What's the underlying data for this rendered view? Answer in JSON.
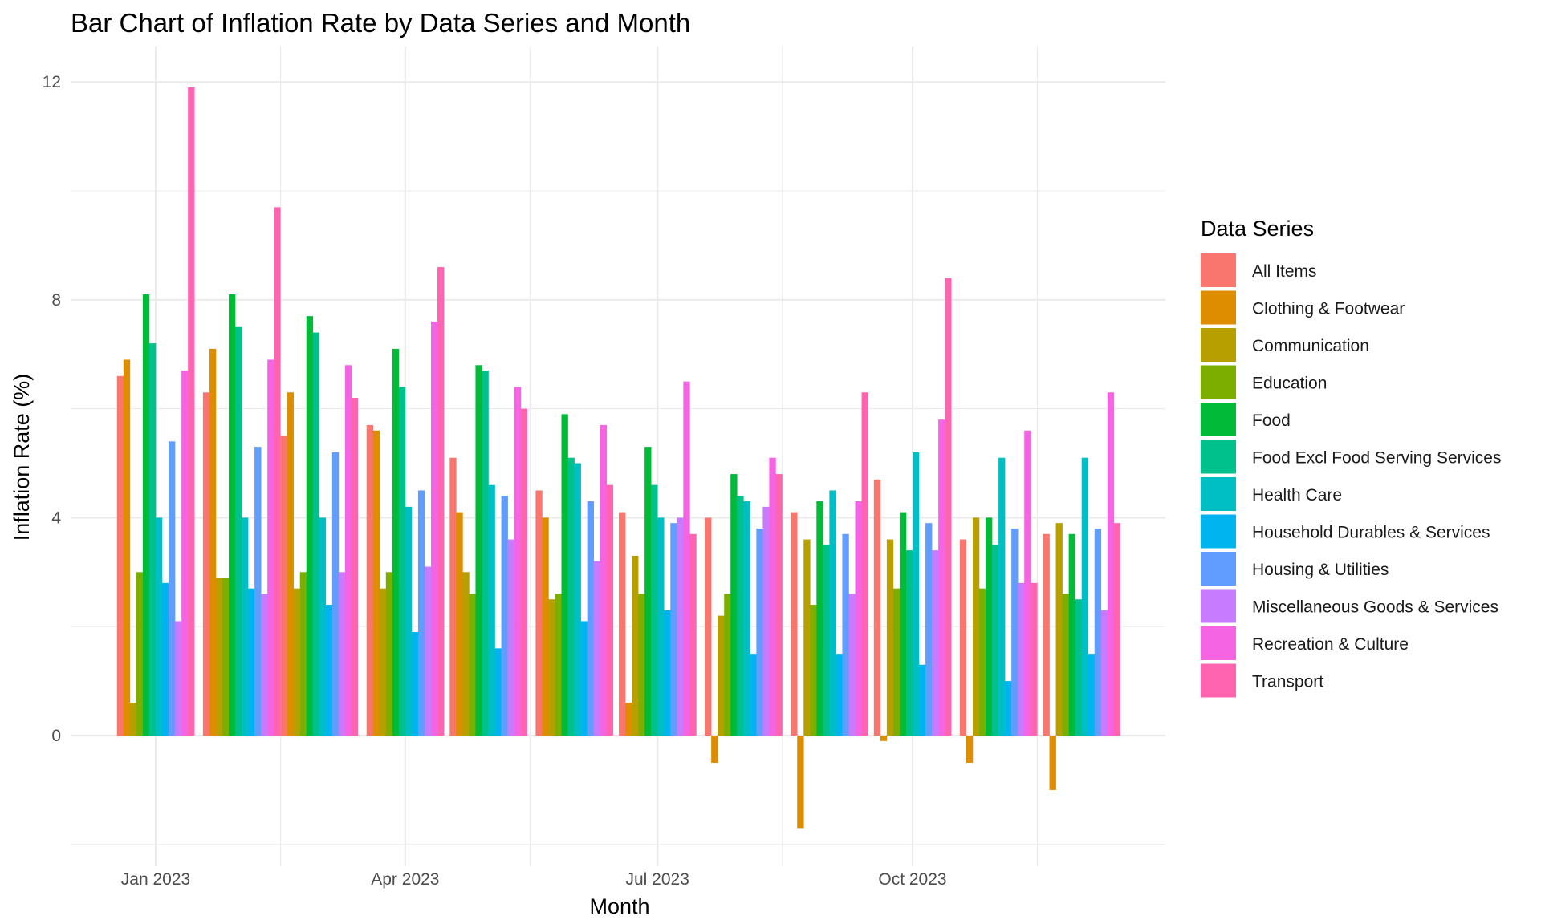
{
  "chart_data": {
    "type": "bar",
    "title": "Bar Chart of Inflation Rate by Data Series and Month",
    "xlabel": "Month",
    "ylabel": "Inflation Rate (%)",
    "ylim": [
      -2.4,
      12.6
    ],
    "y_ticks": [
      0,
      4,
      8,
      12
    ],
    "grid": true,
    "legend": {
      "title": "Data Series",
      "position": "right"
    },
    "categories": [
      "2023-01",
      "2023-02",
      "2023-03",
      "2023-04",
      "2023-05",
      "2023-06",
      "2023-07",
      "2023-08",
      "2023-09",
      "2023-10",
      "2023-11",
      "2023-12"
    ],
    "x_tick_labels": [
      {
        "month": "2023-01",
        "label": "Jan 2023"
      },
      {
        "month": "2023-04",
        "label": "Apr 2023"
      },
      {
        "month": "2023-07",
        "label": "Jul 2023"
      },
      {
        "month": "2023-10",
        "label": "Oct 2023"
      }
    ],
    "series": [
      {
        "name": "All Items",
        "color": "#F8766D",
        "values": [
          6.6,
          6.3,
          5.5,
          5.7,
          5.1,
          4.5,
          4.1,
          4.0,
          4.1,
          4.7,
          3.6,
          3.7
        ]
      },
      {
        "name": "Clothing & Footwear",
        "color": "#DE8C00",
        "values": [
          6.9,
          7.1,
          6.3,
          5.6,
          4.1,
          4.0,
          0.6,
          -0.5,
          -1.7,
          -0.1,
          -0.5,
          -1.0
        ]
      },
      {
        "name": "Communication",
        "color": "#B79F00",
        "values": [
          0.6,
          2.9,
          2.7,
          2.7,
          3.0,
          2.5,
          3.3,
          2.2,
          3.6,
          3.6,
          4.0,
          3.9
        ]
      },
      {
        "name": "Education",
        "color": "#7CAE00",
        "values": [
          3.0,
          2.9,
          3.0,
          3.0,
          2.6,
          2.6,
          2.6,
          2.6,
          2.4,
          2.7,
          2.7,
          2.6
        ]
      },
      {
        "name": "Food",
        "color": "#00BA38",
        "values": [
          8.1,
          8.1,
          7.7,
          7.1,
          6.8,
          5.9,
          5.3,
          4.8,
          4.3,
          4.1,
          4.0,
          3.7
        ]
      },
      {
        "name": "Food Excl Food Serving Services",
        "color": "#00C08B",
        "values": [
          7.2,
          7.5,
          7.4,
          6.4,
          6.7,
          5.1,
          4.6,
          4.4,
          3.5,
          3.4,
          3.5,
          2.5
        ]
      },
      {
        "name": "Health Care",
        "color": "#00BFC4",
        "values": [
          4.0,
          4.0,
          4.0,
          4.2,
          4.6,
          5.0,
          4.0,
          4.3,
          4.5,
          5.2,
          5.1,
          5.1
        ]
      },
      {
        "name": "Household Durables & Services",
        "color": "#00B4F0",
        "values": [
          2.8,
          2.7,
          2.4,
          1.9,
          1.6,
          2.1,
          2.3,
          1.5,
          1.5,
          1.3,
          1.0,
          1.5
        ]
      },
      {
        "name": "Housing & Utilities",
        "color": "#619CFF",
        "values": [
          5.4,
          5.3,
          5.2,
          4.5,
          4.4,
          4.3,
          3.9,
          3.8,
          3.7,
          3.9,
          3.8,
          3.8
        ]
      },
      {
        "name": "Miscellaneous Goods & Services",
        "color": "#C77CFF",
        "values": [
          2.1,
          2.6,
          3.0,
          3.1,
          3.6,
          3.2,
          4.0,
          4.2,
          2.6,
          3.4,
          2.8,
          2.3
        ]
      },
      {
        "name": "Recreation & Culture",
        "color": "#F564E3",
        "values": [
          6.7,
          6.9,
          6.8,
          7.6,
          6.4,
          5.7,
          6.5,
          5.1,
          4.3,
          5.8,
          5.6,
          6.3
        ]
      },
      {
        "name": "Transport",
        "color": "#FF64B0",
        "values": [
          11.9,
          9.7,
          6.2,
          8.6,
          6.0,
          4.6,
          3.7,
          4.8,
          6.3,
          8.4,
          2.8,
          3.9
        ]
      }
    ]
  }
}
